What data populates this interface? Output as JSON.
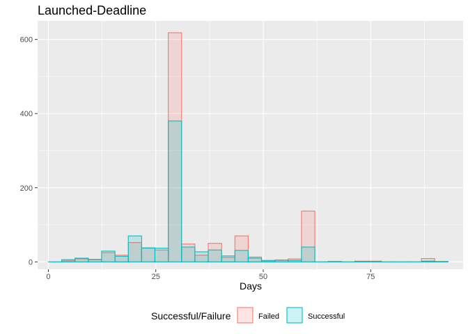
{
  "chart_data": {
    "type": "bar",
    "title": "Launched-Deadline",
    "xlabel": "Days",
    "ylabel": "",
    "xlim": [
      -2.5,
      96.5
    ],
    "ylim": [
      -20,
      650
    ],
    "x_ticks": [
      0,
      25,
      50,
      75
    ],
    "y_ticks": [
      0,
      200,
      400,
      600
    ],
    "grid": true,
    "legend": {
      "title": "Successful/Failure",
      "position": "bottom"
    },
    "bin_width": 3.1,
    "bin_centers": [
      1.55,
      4.65,
      7.75,
      10.85,
      13.95,
      17.05,
      20.15,
      23.25,
      26.35,
      29.45,
      32.55,
      35.65,
      38.75,
      41.85,
      44.95,
      48.05,
      51.15,
      54.25,
      57.35,
      60.45,
      63.55,
      66.65,
      69.75,
      72.85,
      75.95,
      79.05,
      82.15,
      85.25,
      88.35,
      91.45
    ],
    "series": [
      {
        "name": "Failed",
        "color": "#F8766D",
        "values": [
          0,
          3,
          8,
          7,
          25,
          18,
          52,
          38,
          32,
          618,
          48,
          18,
          50,
          12,
          70,
          13,
          4,
          4,
          8,
          137,
          0,
          1,
          0,
          2,
          2,
          0,
          0,
          0,
          9,
          1
        ]
      },
      {
        "name": "Successful",
        "color": "#00BFC4",
        "values": [
          0,
          6,
          10,
          6,
          29,
          15,
          70,
          37,
          37,
          380,
          40,
          27,
          32,
          16,
          31,
          10,
          3,
          5,
          4,
          40,
          0,
          1,
          0,
          1,
          1,
          0,
          0,
          0,
          2,
          1
        ]
      }
    ]
  }
}
